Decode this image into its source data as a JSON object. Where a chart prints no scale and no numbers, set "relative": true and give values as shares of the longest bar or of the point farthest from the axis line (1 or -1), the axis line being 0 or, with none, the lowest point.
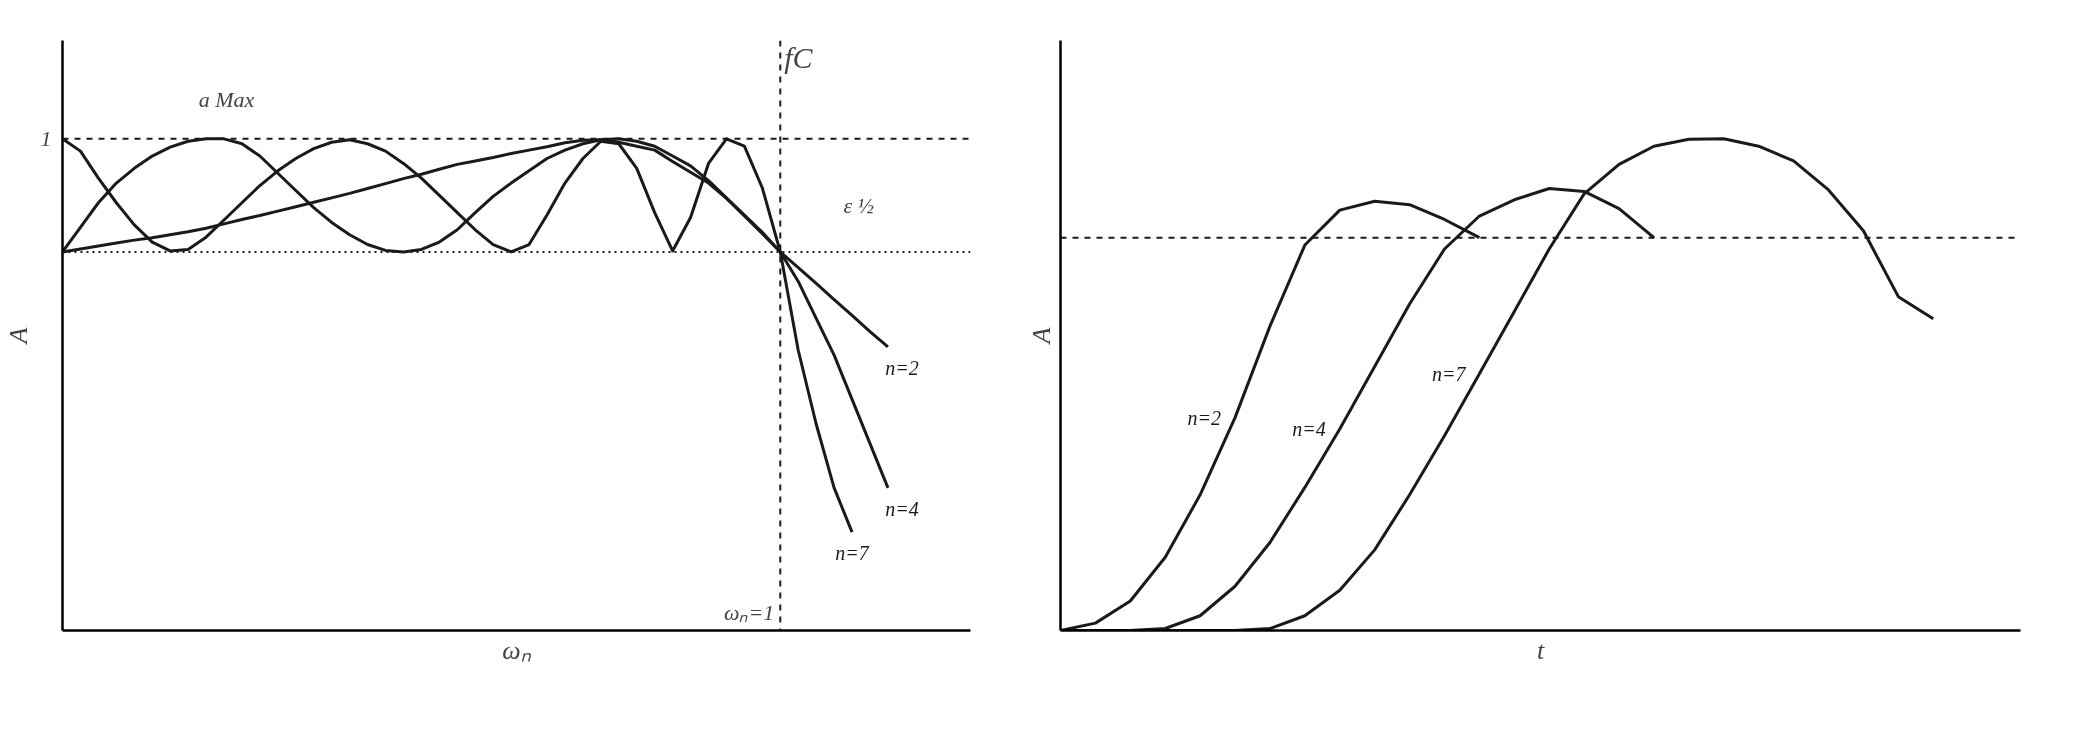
{
  "chart_data": [
    {
      "type": "line",
      "relative": true,
      "xlabel": "ωₙ",
      "ylabel": "A",
      "grid": false,
      "line_style": "solid",
      "categories": [
        null,
        null,
        null,
        null,
        null,
        null,
        null,
        null,
        null,
        null,
        null,
        null,
        null,
        null,
        null,
        null,
        null,
        null,
        null,
        null,
        null,
        null,
        null,
        null,
        null,
        null,
        null,
        null,
        null,
        null,
        null,
        null,
        null,
        null,
        null,
        null,
        null,
        null,
        null,
        null,
        null,
        null,
        null,
        null,
        null,
        null,
        null
      ],
      "series": [
        {
          "name": "n=2",
          "color": "#1a1a1a",
          "values": [
            0.77,
            0.776,
            0.782,
            0.788,
            0.794,
            0.799,
            0.805,
            0.811,
            0.818,
            0.827,
            0.836,
            0.844,
            0.853,
            0.862,
            0.871,
            0.88,
            0.889,
            0.899,
            0.909,
            0.919,
            0.928,
            0.938,
            0.948,
            0.955,
            0.962,
            0.97,
            0.977,
            0.984,
            0.992,
            0.997,
            0.998,
            0.993,
            0.985,
            0.977,
            0.954,
            0.932,
            0.91,
            0.879,
            0.843,
            0.807,
            0.77,
            0.738,
            0.706,
            0.673,
            0.641,
            0.608,
            0.577
          ]
        },
        {
          "name": "n=4",
          "color": "#1a1a1a",
          "values": [
            0.77,
            0.82,
            0.87,
            0.91,
            0.94,
            0.965,
            0.983,
            0.995,
            1.0,
            1.0,
            0.99,
            0.965,
            0.93,
            0.895,
            0.86,
            0.83,
            0.805,
            0.785,
            0.773,
            0.77,
            0.775,
            0.79,
            0.815,
            0.85,
            0.883,
            0.91,
            0.935,
            0.96,
            0.977,
            0.99,
            0.998,
            1.0,
            0.995,
            0.985,
            0.965,
            0.945,
            0.915,
            0.88,
            0.845,
            0.81,
            0.77,
            0.71,
            0.635,
            0.56,
            0.47,
            0.38,
            0.29
          ]
        },
        {
          "name": "n=7",
          "color": "#1a1a1a",
          "values": [
            1.0,
            0.975,
            0.92,
            0.87,
            0.825,
            0.79,
            0.772,
            0.775,
            0.8,
            0.835,
            0.87,
            0.905,
            0.935,
            0.96,
            0.98,
            0.993,
            0.998,
            0.99,
            0.975,
            0.95,
            0.92,
            0.885,
            0.85,
            0.815,
            0.785,
            0.77,
            0.785,
            0.845,
            0.91,
            0.96,
            0.995,
            0.99,
            0.94,
            0.85,
            0.772,
            0.84,
            0.95,
            1.0,
            0.985,
            0.9,
            0.77,
            0.57,
            0.42,
            0.29,
            0.2,
            null,
            null
          ]
        }
      ],
      "ref_lines": [
        {
          "axis": "y",
          "value": 1,
          "label": "1",
          "color": "#1a1a1a",
          "line_style": "dashed"
        },
        {
          "axis": "y",
          "value": 0.77,
          "color": "#1a1a1a",
          "line_style": "dotted"
        }
      ],
      "annotations": [
        "a Max",
        "ε ½",
        "fC",
        "ωₙ=1"
      ]
    },
    {
      "type": "line",
      "relative": true,
      "xlabel": "t",
      "ylabel": "A",
      "grid": false,
      "line_style": "solid",
      "categories": [
        null,
        null,
        null,
        null,
        null,
        null,
        null,
        null,
        null,
        null,
        null,
        null,
        null,
        null,
        null,
        null,
        null,
        null,
        null,
        null,
        null,
        null,
        null,
        null,
        null,
        null
      ],
      "series": [
        {
          "name": "n=2",
          "color": "#1a1a1a",
          "values": [
            0,
            0.015,
            0.06,
            0.149,
            0.276,
            0.433,
            0.619,
            0.784,
            0.855,
            0.873,
            0.866,
            0.836,
            0.799,
            null,
            null,
            null,
            null,
            null,
            null,
            null,
            null,
            null,
            null,
            null,
            null,
            null
          ]
        },
        {
          "name": "n=4",
          "color": "#1a1a1a",
          "values": [
            0,
            0,
            0,
            0.004,
            0.03,
            0.09,
            0.179,
            0.291,
            0.41,
            0.537,
            0.664,
            0.776,
            0.843,
            0.876,
            0.899,
            0.893,
            0.858,
            0.799,
            null,
            null,
            null,
            null,
            null,
            null,
            null,
            null
          ]
        },
        {
          "name": "n=7",
          "color": "#1a1a1a",
          "values": [
            0,
            0,
            0,
            0,
            0,
            0,
            0.004,
            0.03,
            0.082,
            0.164,
            0.276,
            0.396,
            0.522,
            0.649,
            0.776,
            0.888,
            0.948,
            0.985,
            0.999,
            1.0,
            0.985,
            0.955,
            0.896,
            0.813,
            0.679,
            0.634
          ]
        }
      ],
      "ref_lines": [
        {
          "axis": "y",
          "value": 0.799,
          "color": "#1a1a1a",
          "line_style": "dashed"
        }
      ]
    }
  ]
}
